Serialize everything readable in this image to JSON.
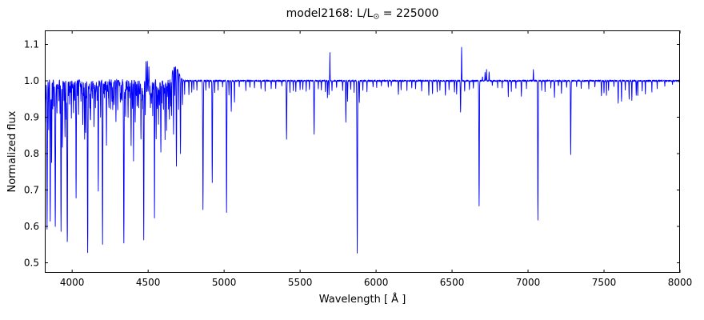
{
  "chart_data": {
    "type": "line",
    "title": "model2168: L/L⊙ = 225000",
    "title_parts": {
      "prefix": "model2168: L/L",
      "sun_symbol": "⊙",
      "suffix": " = 225000"
    },
    "xlabel": "Wavelength [ Å ]",
    "ylabel": "Normalized flux",
    "xlim": [
      3820,
      8000
    ],
    "ylim": [
      0.4725,
      1.1385
    ],
    "xticks": [
      4000,
      4500,
      5000,
      5500,
      6000,
      6500,
      7000,
      7500,
      8000
    ],
    "yticks": [
      0.5,
      0.6,
      0.7,
      0.8,
      0.9,
      1.0,
      1.1
    ],
    "grid": false,
    "legend": "none",
    "line_color": "#0000ff",
    "frame_color": "#000000",
    "baseline_flux": 1.0,
    "continuum_bumps": [
      [
        4678,
        0.038,
        22
      ]
    ],
    "noise": {
      "seed": 42,
      "amplitude_flat": 0.0022,
      "amplitude_dense": 0.0045,
      "dense_region": [
        3822,
        4660
      ],
      "dense_max_extra_depth": 0.05
    },
    "features": [
      [
        3823,
        0.9,
        1.4
      ],
      [
        3827,
        0.955,
        1.0
      ],
      [
        3835,
        0.6,
        1.8
      ],
      [
        3846,
        0.88,
        1.2
      ],
      [
        3856,
        0.615,
        1.6
      ],
      [
        3865,
        0.8,
        1.2
      ],
      [
        3872,
        0.93,
        1.0
      ],
      [
        3880,
        0.95,
        1.0
      ],
      [
        3889,
        0.6,
        1.8
      ],
      [
        3900,
        0.91,
        1.2
      ],
      [
        3913,
        0.95,
        1.0
      ],
      [
        3920,
        0.94,
        1.0
      ],
      [
        3927,
        0.585,
        1.6
      ],
      [
        3936,
        0.82,
        1.2
      ],
      [
        3946,
        0.95,
        1.0
      ],
      [
        3953,
        0.85,
        1.2
      ],
      [
        3961,
        0.93,
        1.0
      ],
      [
        3968,
        0.57,
        1.8
      ],
      [
        3983,
        0.94,
        1.0
      ],
      [
        3995,
        0.92,
        1.2
      ],
      [
        4009,
        0.93,
        1.2
      ],
      [
        4026,
        0.715,
        1.6
      ],
      [
        4042,
        0.95,
        1.0
      ],
      [
        4058,
        0.94,
        1.2
      ],
      [
        4070,
        0.91,
        1.2
      ],
      [
        4082,
        0.88,
        1.2
      ],
      [
        4089,
        0.86,
        1.2
      ],
      [
        4102,
        0.556,
        1.8
      ],
      [
        4116,
        0.93,
        1.0
      ],
      [
        4121,
        0.9,
        1.2
      ],
      [
        4132,
        0.95,
        1.0
      ],
      [
        4144,
        0.87,
        1.4
      ],
      [
        4153,
        0.93,
        1.0
      ],
      [
        4164,
        0.95,
        1.0
      ],
      [
        4172,
        0.71,
        1.4
      ],
      [
        4187,
        0.94,
        1.0
      ],
      [
        4200,
        0.553,
        1.5
      ],
      [
        4213,
        0.95,
        1.0
      ],
      [
        4226,
        0.868,
        1.2
      ],
      [
        4242,
        0.94,
        1.0
      ],
      [
        4253,
        0.95,
        1.0
      ],
      [
        4267,
        0.93,
        1.2
      ],
      [
        4276,
        0.94,
        1.0
      ],
      [
        4288,
        0.925,
        1.2
      ],
      [
        4300,
        0.95,
        1.0
      ],
      [
        4317,
        0.938,
        1.2
      ],
      [
        4326,
        0.95,
        1.0
      ],
      [
        4340,
        0.563,
        1.8
      ],
      [
        4352,
        0.93,
        1.2
      ],
      [
        4368,
        0.93,
        1.2
      ],
      [
        4379,
        0.95,
        1.0
      ],
      [
        4388,
        0.825,
        1.2
      ],
      [
        4397,
        0.94,
        1.0
      ],
      [
        4404,
        0.795,
        1.2
      ],
      [
        4415,
        0.885,
        1.2
      ],
      [
        4427,
        0.94,
        1.0
      ],
      [
        4438,
        0.93,
        1.2
      ],
      [
        4453,
        0.885,
        1.2
      ],
      [
        4465,
        0.93,
        1.0
      ],
      [
        4471,
        0.575,
        1.7
      ],
      [
        4481,
        0.915,
        1.2
      ],
      [
        4486,
        1.05,
        1.1
      ],
      [
        4495,
        1.058,
        1.1
      ],
      [
        4505,
        1.04,
        1.0
      ],
      [
        4515,
        0.93,
        1.2
      ],
      [
        4522,
        0.94,
        1.0
      ],
      [
        4530,
        0.905,
        1.2
      ],
      [
        4542,
        0.67,
        1.5
      ],
      [
        4553,
        0.878,
        1.2
      ],
      [
        4560,
        0.94,
        1.0
      ],
      [
        4568,
        0.882,
        1.2
      ],
      [
        4575,
        0.93,
        1.0
      ],
      [
        4584,
        0.815,
        1.2
      ],
      [
        4590,
        0.94,
        1.0
      ],
      [
        4601,
        0.93,
        1.0
      ],
      [
        4611,
        0.84,
        1.2
      ],
      [
        4621,
        0.86,
        1.2
      ],
      [
        4634,
        0.92,
        1.0
      ],
      [
        4640,
        0.895,
        1.2
      ],
      [
        4649,
        0.93,
        1.0
      ],
      [
        4654,
        0.885,
        1.2
      ],
      [
        4667,
        0.82,
        1.3
      ],
      [
        4676,
        0.92,
        1.0
      ],
      [
        4686,
        0.73,
        1.5
      ],
      [
        4700,
        0.9,
        1.2
      ],
      [
        4713,
        0.788,
        1.4
      ],
      [
        4726,
        0.93,
        1.1
      ],
      [
        4740,
        0.96,
        1.0
      ],
      [
        4768,
        0.962,
        1.1
      ],
      [
        4787,
        0.97,
        1.0
      ],
      [
        4800,
        0.975,
        1.0
      ],
      [
        4821,
        0.972,
        1.0
      ],
      [
        4861,
        0.645,
        1.8
      ],
      [
        4880,
        0.975,
        1.0
      ],
      [
        4901,
        0.98,
        1.0
      ],
      [
        4922,
        0.72,
        1.5
      ],
      [
        4938,
        0.97,
        1.0
      ],
      [
        4960,
        0.975,
        1.0
      ],
      [
        4990,
        0.985,
        1.0
      ],
      [
        5016,
        0.64,
        1.5
      ],
      [
        5032,
        0.96,
        1.0
      ],
      [
        5047,
        0.915,
        1.2
      ],
      [
        5068,
        0.94,
        1.1
      ],
      [
        5100,
        0.984,
        1.0
      ],
      [
        5143,
        0.975,
        1.0
      ],
      [
        5170,
        0.98,
        1.0
      ],
      [
        5200,
        0.982,
        1.0
      ],
      [
        5243,
        0.978,
        1.0
      ],
      [
        5270,
        0.972,
        1.0
      ],
      [
        5310,
        0.98,
        1.0
      ],
      [
        5340,
        0.977,
        1.0
      ],
      [
        5380,
        0.985,
        1.0
      ],
      [
        5411,
        0.838,
        1.5
      ],
      [
        5433,
        0.97,
        1.0
      ],
      [
        5455,
        0.975,
        1.0
      ],
      [
        5472,
        0.972,
        1.0
      ],
      [
        5500,
        0.975,
        1.0
      ],
      [
        5518,
        0.978,
        1.0
      ],
      [
        5540,
        0.972,
        1.0
      ],
      [
        5561,
        0.976,
        1.0
      ],
      [
        5592,
        0.855,
        1.5
      ],
      [
        5620,
        0.98,
        1.0
      ],
      [
        5640,
        0.975,
        1.0
      ],
      [
        5666,
        0.972,
        1.0
      ],
      [
        5680,
        0.955,
        1.2
      ],
      [
        5690,
        0.961,
        1.0
      ],
      [
        5696,
        1.079,
        1.2
      ],
      [
        5710,
        0.972,
        1.0
      ],
      [
        5740,
        0.98,
        1.0
      ],
      [
        5780,
        0.975,
        1.0
      ],
      [
        5801,
        0.885,
        1.3
      ],
      [
        5812,
        0.945,
        1.2
      ],
      [
        5833,
        0.975,
        1.0
      ],
      [
        5855,
        0.97,
        1.0
      ],
      [
        5876,
        0.525,
        1.9
      ],
      [
        5890,
        0.94,
        1.2
      ],
      [
        5913,
        0.975,
        1.0
      ],
      [
        5940,
        0.972,
        1.0
      ],
      [
        5980,
        0.982,
        1.0
      ],
      [
        6004,
        0.982,
        1.0
      ],
      [
        6035,
        0.985,
        1.0
      ],
      [
        6080,
        0.982,
        1.0
      ],
      [
        6100,
        0.985,
        1.0
      ],
      [
        6147,
        0.963,
        1.2
      ],
      [
        6165,
        0.975,
        1.0
      ],
      [
        6203,
        0.972,
        1.0
      ],
      [
        6235,
        0.98,
        1.0
      ],
      [
        6260,
        0.978,
        1.0
      ],
      [
        6300,
        0.972,
        1.0
      ],
      [
        6347,
        0.962,
        1.2
      ],
      [
        6371,
        0.966,
        1.1
      ],
      [
        6402,
        0.968,
        1.1
      ],
      [
        6420,
        0.975,
        1.0
      ],
      [
        6456,
        0.96,
        1.2
      ],
      [
        6480,
        0.975,
        1.0
      ],
      [
        6516,
        0.97,
        1.1
      ],
      [
        6530,
        0.965,
        1.2
      ],
      [
        6556,
        0.913,
        1.4
      ],
      [
        6563,
        1.092,
        1.2
      ],
      [
        6583,
        0.97,
        1.0
      ],
      [
        6614,
        0.975,
        1.0
      ],
      [
        6640,
        0.978,
        1.0
      ],
      [
        6678,
        0.655,
        1.6
      ],
      [
        6700,
        1.012,
        1.1
      ],
      [
        6717,
        1.022,
        1.1
      ],
      [
        6727,
        1.03,
        1.1
      ],
      [
        6744,
        1.025,
        1.1
      ],
      [
        6765,
        0.985,
        1.0
      ],
      [
        6800,
        0.98,
        1.0
      ],
      [
        6830,
        0.982,
        1.0
      ],
      [
        6870,
        0.956,
        1.2
      ],
      [
        6890,
        0.972,
        1.0
      ],
      [
        6920,
        0.978,
        1.0
      ],
      [
        6956,
        0.956,
        1.2
      ],
      [
        6990,
        0.98,
        1.0
      ],
      [
        7035,
        1.031,
        1.1
      ],
      [
        7065,
        0.617,
        1.6
      ],
      [
        7090,
        0.975,
        1.0
      ],
      [
        7112,
        0.972,
        1.0
      ],
      [
        7150,
        0.98,
        1.0
      ],
      [
        7174,
        0.956,
        1.2
      ],
      [
        7200,
        0.985,
        1.0
      ],
      [
        7220,
        0.966,
        1.1
      ],
      [
        7254,
        0.98,
        1.0
      ],
      [
        7281,
        0.798,
        1.5
      ],
      [
        7320,
        0.985,
        1.0
      ],
      [
        7350,
        0.98,
        1.0
      ],
      [
        7400,
        0.977,
        1.0
      ],
      [
        7440,
        0.982,
        1.0
      ],
      [
        7483,
        0.958,
        1.2
      ],
      [
        7500,
        0.965,
        1.0
      ],
      [
        7516,
        0.962,
        1.0
      ],
      [
        7530,
        0.972,
        1.0
      ],
      [
        7565,
        0.985,
        1.0
      ],
      [
        7593,
        0.937,
        1.3
      ],
      [
        7615,
        0.944,
        1.2
      ],
      [
        7640,
        0.975,
        1.0
      ],
      [
        7665,
        0.95,
        1.2
      ],
      [
        7683,
        0.948,
        1.2
      ],
      [
        7712,
        0.96,
        1.1
      ],
      [
        7722,
        0.958,
        1.1
      ],
      [
        7751,
        0.97,
        1.0
      ],
      [
        7772,
        0.962,
        1.0
      ],
      [
        7815,
        0.968,
        1.0
      ],
      [
        7850,
        0.98,
        1.0
      ],
      [
        7900,
        0.986,
        1.0
      ],
      [
        7950,
        0.99,
        1.0
      ]
    ]
  }
}
